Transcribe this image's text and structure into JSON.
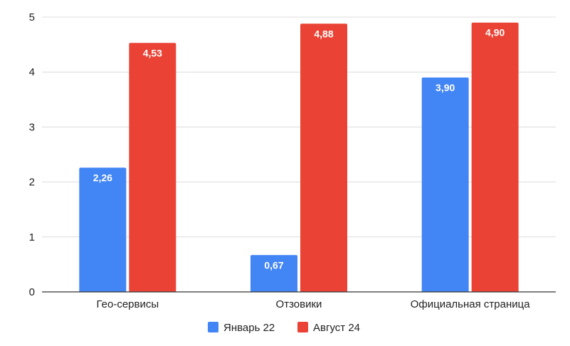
{
  "chart_data": {
    "type": "bar",
    "categories": [
      "Гео-сервисы",
      "Отзовики",
      "Официальная страница"
    ],
    "series": [
      {
        "name": "Январь 22",
        "color": "#4285f4",
        "values": [
          2.26,
          0.67,
          3.9
        ],
        "labels": [
          "2,26",
          "0,67",
          "3,90"
        ]
      },
      {
        "name": "Август 24",
        "color": "#ea4335",
        "values": [
          4.53,
          4.88,
          4.9
        ],
        "labels": [
          "4,53",
          "4,88",
          "4,90"
        ]
      }
    ],
    "title": "",
    "xlabel": "",
    "ylabel": "",
    "ylim": [
      0,
      5
    ],
    "yticks": [
      "0",
      "1",
      "2",
      "3",
      "4",
      "5"
    ],
    "grid": true,
    "legend_position": "bottom"
  }
}
